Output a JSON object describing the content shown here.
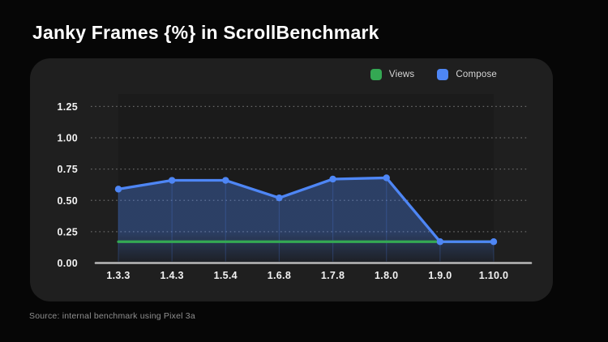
{
  "title": "Janky Frames {%} in ScrollBenchmark",
  "footer": "Source: internal benchmark using Pixel 3a",
  "colors": {
    "page_background": "#060606",
    "card_background": "#1f1f1f",
    "views_green": "#34a853",
    "compose_blue": "#4e86f5",
    "gridline": "#676767",
    "axis_line": "#b9b9b9",
    "tick_text": "#f2f2f2"
  },
  "legend": [
    {
      "label": "Views",
      "color": "#34a853"
    },
    {
      "label": "Compose",
      "color": "#4e86f5"
    }
  ],
  "chart_data": {
    "type": "line",
    "title": "Janky Frames {%} in ScrollBenchmark",
    "xlabel": "",
    "ylabel": "",
    "categories": [
      "1.3.3",
      "1.4.3",
      "1.5.4",
      "1.6.8",
      "1.7.8",
      "1.8.0",
      "1.9.0",
      "1.10.0"
    ],
    "y_tick_labels": [
      "0.00",
      "0.25",
      "0.50",
      "0.75",
      "1.00",
      "1.25"
    ],
    "ylim": [
      0,
      1.35
    ],
    "grid": "dotted-horizontal",
    "legend_position": "top-right",
    "series": [
      {
        "name": "Views",
        "color": "#34a853",
        "style": "line",
        "markers": false,
        "values": [
          0.17,
          0.17,
          0.17,
          0.17,
          0.17,
          0.17,
          0.17,
          0.17
        ]
      },
      {
        "name": "Compose",
        "color": "#4e86f5",
        "style": "line-area",
        "markers": true,
        "values": [
          0.59,
          0.66,
          0.66,
          0.52,
          0.67,
          0.68,
          0.17,
          0.17
        ]
      }
    ]
  }
}
